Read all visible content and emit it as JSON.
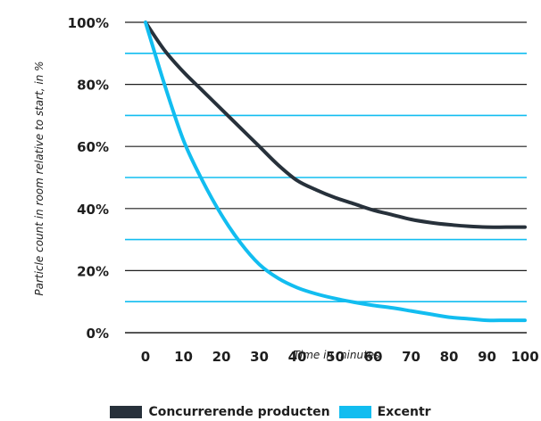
{
  "colors": {
    "dark_line": "#27313b",
    "cyan_line": "#12bdf0",
    "axis": "#1e1e1e"
  },
  "chart_data": {
    "type": "line",
    "title": "",
    "xlabel": "Time in minutes",
    "ylabel": "Particle count in room relative to start, in %",
    "x": [
      0,
      5,
      10,
      15,
      20,
      25,
      30,
      35,
      40,
      45,
      50,
      55,
      60,
      65,
      70,
      75,
      80,
      85,
      90,
      95,
      100
    ],
    "xlim": [
      0,
      100
    ],
    "ylim": [
      0,
      100
    ],
    "x_ticks": [
      "0",
      "10",
      "20",
      "30",
      "40",
      "50",
      "60",
      "70",
      "80",
      "90",
      "100"
    ],
    "x_tick_values": [
      0,
      10,
      20,
      30,
      40,
      50,
      60,
      70,
      80,
      90,
      100
    ],
    "y_ticks": [
      "0%",
      "20%",
      "40%",
      "60%",
      "80%",
      "100%"
    ],
    "y_tick_values": [
      0,
      20,
      40,
      60,
      80,
      100
    ],
    "grid": {
      "major_values": [
        0,
        20,
        40,
        60,
        80,
        100
      ],
      "minor_values": [
        10,
        30,
        50,
        70,
        90
      ]
    },
    "legend_position": "bottom-center",
    "series": [
      {
        "name": "Concurrerende producten",
        "color": "#27313b",
        "values": [
          100,
          91,
          84,
          78,
          72,
          66,
          60,
          54,
          49,
          46,
          43.5,
          41.5,
          39.5,
          38,
          36.5,
          35.5,
          34.8,
          34.3,
          34,
          34,
          34
        ]
      },
      {
        "name": "Excentr",
        "color": "#12bdf0",
        "values": [
          100,
          80,
          62,
          49,
          38,
          29,
          22,
          17.5,
          14.5,
          12.5,
          11,
          9.8,
          8.8,
          8,
          7,
          6,
          5,
          4.5,
          4,
          4,
          4
        ]
      }
    ]
  }
}
